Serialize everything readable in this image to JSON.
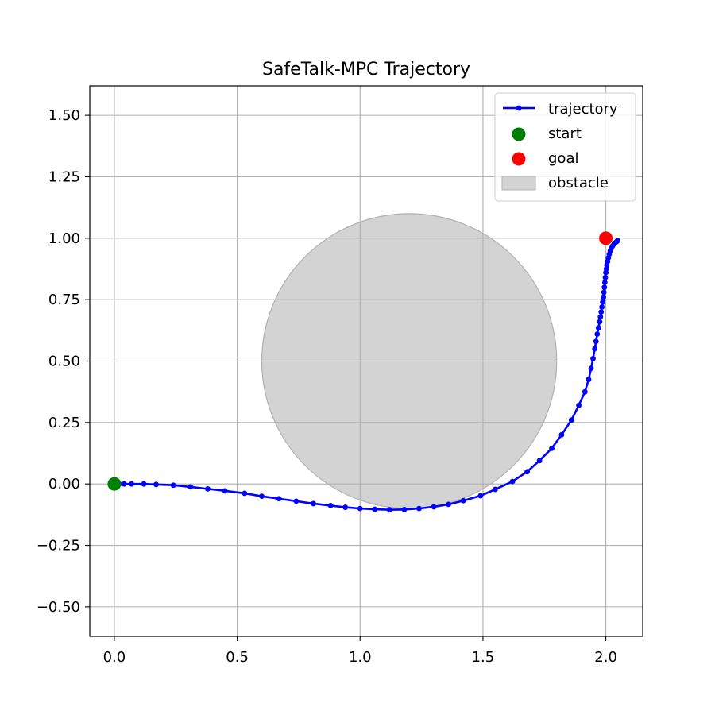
{
  "chart_data": {
    "type": "scatter",
    "title": "SafeTalk-MPC Trajectory",
    "xlabel": "",
    "ylabel": "",
    "xlim": [
      -0.1,
      2.15
    ],
    "ylim": [
      -0.62,
      1.62
    ],
    "x_ticks": [
      0.0,
      0.5,
      1.0,
      1.5,
      2.0
    ],
    "x_tick_labels": [
      "0.0",
      "0.5",
      "1.0",
      "1.5",
      "2.0"
    ],
    "y_ticks": [
      -0.5,
      -0.25,
      0.0,
      0.25,
      0.5,
      0.75,
      1.0,
      1.25,
      1.5
    ],
    "y_tick_labels": [
      "−0.50",
      "−0.25",
      "0.00",
      "0.25",
      "0.50",
      "0.75",
      "1.00",
      "1.25",
      "1.50"
    ],
    "grid": true,
    "legend_position": "top-right",
    "series": [
      {
        "name": "trajectory",
        "kind": "line-markers",
        "color": "#0000ff",
        "points": [
          [
            0.0,
            0.0
          ],
          [
            0.01,
            0.0
          ],
          [
            0.02,
            0.0
          ],
          [
            0.04,
            0.0
          ],
          [
            0.07,
            0.0
          ],
          [
            0.12,
            0.0
          ],
          [
            0.17,
            -0.002
          ],
          [
            0.24,
            -0.005
          ],
          [
            0.31,
            -0.012
          ],
          [
            0.38,
            -0.02
          ],
          [
            0.45,
            -0.028
          ],
          [
            0.53,
            -0.038
          ],
          [
            0.6,
            -0.05
          ],
          [
            0.67,
            -0.06
          ],
          [
            0.74,
            -0.07
          ],
          [
            0.81,
            -0.08
          ],
          [
            0.88,
            -0.088
          ],
          [
            0.94,
            -0.095
          ],
          [
            1.0,
            -0.1
          ],
          [
            1.06,
            -0.103
          ],
          [
            1.12,
            -0.105
          ],
          [
            1.18,
            -0.104
          ],
          [
            1.24,
            -0.1
          ],
          [
            1.3,
            -0.093
          ],
          [
            1.36,
            -0.083
          ],
          [
            1.42,
            -0.068
          ],
          [
            1.49,
            -0.048
          ],
          [
            1.55,
            -0.022
          ],
          [
            1.62,
            0.01
          ],
          [
            1.68,
            0.05
          ],
          [
            1.73,
            0.095
          ],
          [
            1.78,
            0.145
          ],
          [
            1.82,
            0.2
          ],
          [
            1.86,
            0.26
          ],
          [
            1.89,
            0.32
          ],
          [
            1.915,
            0.375
          ],
          [
            1.93,
            0.425
          ],
          [
            1.94,
            0.47
          ],
          [
            1.948,
            0.51
          ],
          [
            1.955,
            0.55
          ],
          [
            1.96,
            0.58
          ],
          [
            1.965,
            0.61
          ],
          [
            1.97,
            0.635
          ],
          [
            1.975,
            0.66
          ],
          [
            1.978,
            0.68
          ],
          [
            1.981,
            0.7
          ],
          [
            1.984,
            0.72
          ],
          [
            1.987,
            0.74
          ],
          [
            1.99,
            0.76
          ],
          [
            1.992,
            0.78
          ],
          [
            1.994,
            0.8
          ],
          [
            1.996,
            0.82
          ],
          [
            1.998,
            0.84
          ],
          [
            2.0,
            0.86
          ],
          [
            2.002,
            0.875
          ],
          [
            2.004,
            0.89
          ],
          [
            2.007,
            0.905
          ],
          [
            2.01,
            0.92
          ],
          [
            2.014,
            0.935
          ],
          [
            2.018,
            0.948
          ],
          [
            2.022,
            0.958
          ],
          [
            2.027,
            0.968
          ],
          [
            2.033,
            0.976
          ],
          [
            2.039,
            0.982
          ],
          [
            2.045,
            0.987
          ],
          [
            2.048,
            0.99
          ]
        ]
      },
      {
        "name": "start",
        "kind": "point",
        "color": "#008000",
        "points": [
          [
            0.0,
            0.0
          ]
        ]
      },
      {
        "name": "goal",
        "kind": "point",
        "color": "#ff0000",
        "points": [
          [
            2.0,
            1.0
          ]
        ]
      },
      {
        "name": "obstacle",
        "kind": "circle",
        "color": "#d3d3d3",
        "center": [
          1.2,
          0.5
        ],
        "radius": 0.6
      }
    ]
  }
}
